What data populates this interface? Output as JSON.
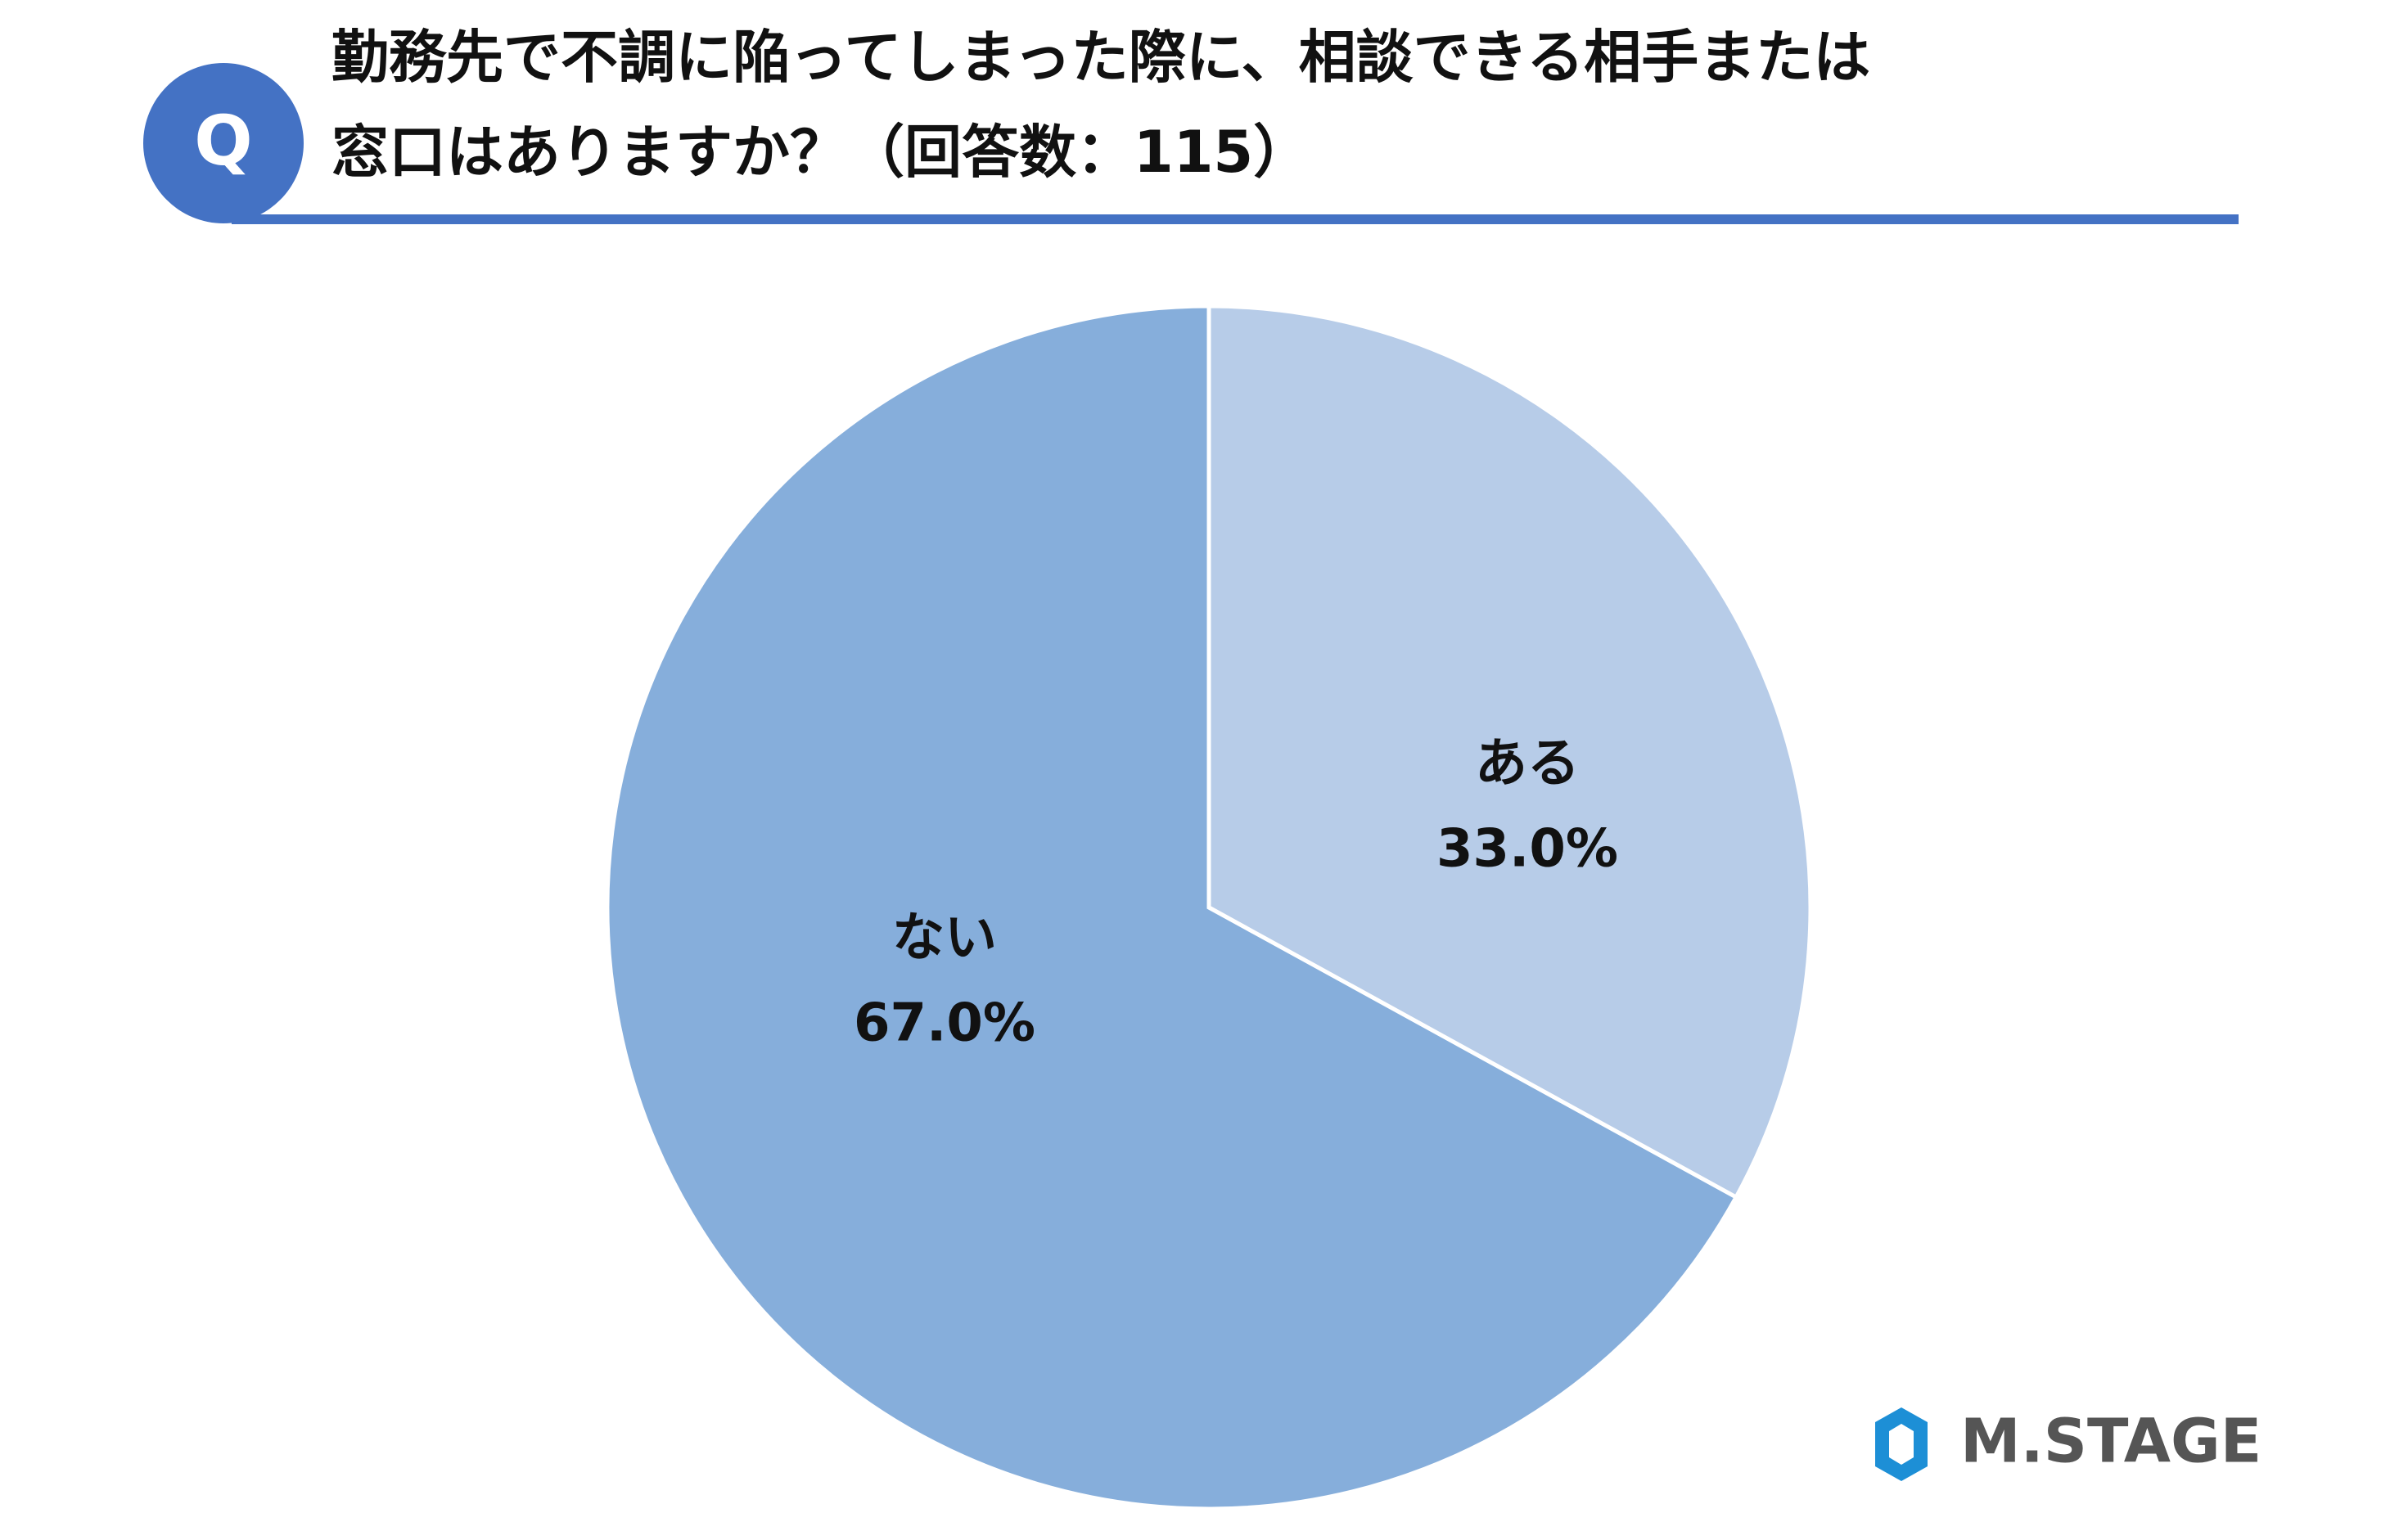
{
  "chart_data": {
    "type": "pie",
    "title": [
      "勤務先で不調に陥ってしまった際に、相談できる相手または",
      "窓口はありますか？（回答数：115）"
    ],
    "categories": [
      "ある",
      "ない"
    ],
    "values": [
      33.0,
      67.0
    ],
    "value_labels": [
      "33.0%",
      "67.0%"
    ],
    "colors": [
      "#b7cce8",
      "#86aedb"
    ]
  },
  "badge": "Q",
  "logo": "M.STAGE"
}
